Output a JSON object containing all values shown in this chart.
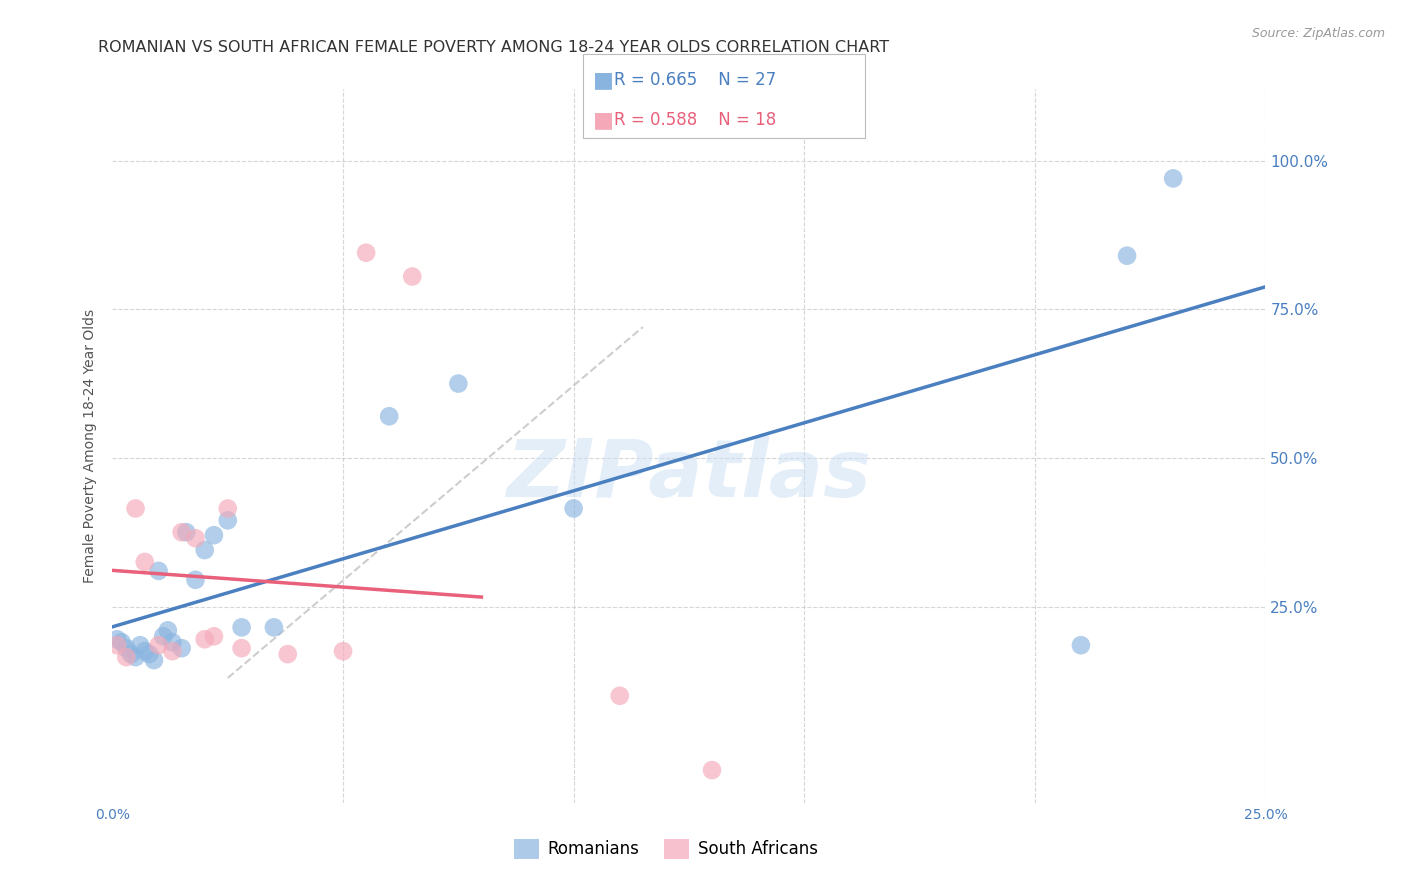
{
  "title": "ROMANIAN VS SOUTH AFRICAN FEMALE POVERTY AMONG 18-24 YEAR OLDS CORRELATION CHART",
  "source": "Source: ZipAtlas.com",
  "ylabel": "Female Poverty Among 18-24 Year Olds",
  "xlim": [
    0.0,
    0.25
  ],
  "ylim": [
    -0.08,
    1.12
  ],
  "right_ytick_positions": [
    0.0,
    0.25,
    0.5,
    0.75,
    1.0
  ],
  "right_ytick_labels": [
    "",
    "25.0%",
    "50.0%",
    "75.0%",
    "100.0%"
  ],
  "xtick_positions": [
    0.0,
    0.05,
    0.1,
    0.15,
    0.2,
    0.25
  ],
  "xtick_labels": [
    "0.0%",
    "",
    "",
    "",
    "",
    "25.0%"
  ],
  "romanian_color": "#8ab4e0",
  "sa_color": "#f4a8b8",
  "romanian_line_color": "#4a7fc0",
  "sa_line_color": "#e8607a",
  "diagonal_color": "#c8c8c8",
  "background_color": "#ffffff",
  "grid_color": "#cccccc",
  "watermark": "ZIPatlas",
  "legend_R_romanian": "R = 0.665",
  "legend_N_romanian": "N = 27",
  "legend_R_sa": "R = 0.588",
  "legend_N_sa": "N = 18",
  "romanians_x": [
    0.001,
    0.002,
    0.003,
    0.004,
    0.005,
    0.006,
    0.007,
    0.008,
    0.009,
    0.01,
    0.011,
    0.012,
    0.013,
    0.015,
    0.016,
    0.018,
    0.02,
    0.022,
    0.025,
    0.028,
    0.035,
    0.06,
    0.075,
    0.1,
    0.21,
    0.22,
    0.23
  ],
  "romanians_y": [
    0.195,
    0.19,
    0.18,
    0.17,
    0.165,
    0.185,
    0.175,
    0.17,
    0.16,
    0.31,
    0.2,
    0.21,
    0.19,
    0.18,
    0.375,
    0.295,
    0.345,
    0.37,
    0.395,
    0.215,
    0.215,
    0.57,
    0.625,
    0.415,
    0.185,
    0.84,
    0.97
  ],
  "sa_x": [
    0.001,
    0.003,
    0.005,
    0.007,
    0.01,
    0.013,
    0.015,
    0.018,
    0.02,
    0.022,
    0.025,
    0.028,
    0.038,
    0.05,
    0.055,
    0.065,
    0.11,
    0.13
  ],
  "sa_y": [
    0.185,
    0.165,
    0.415,
    0.325,
    0.185,
    0.175,
    0.375,
    0.365,
    0.195,
    0.2,
    0.415,
    0.18,
    0.17,
    0.175,
    0.845,
    0.805,
    0.1,
    -0.025
  ],
  "marker_size": 180,
  "title_fontsize": 11.5,
  "axis_label_fontsize": 10,
  "tick_fontsize": 10,
  "legend_fontsize": 12,
  "source_fontsize": 9
}
